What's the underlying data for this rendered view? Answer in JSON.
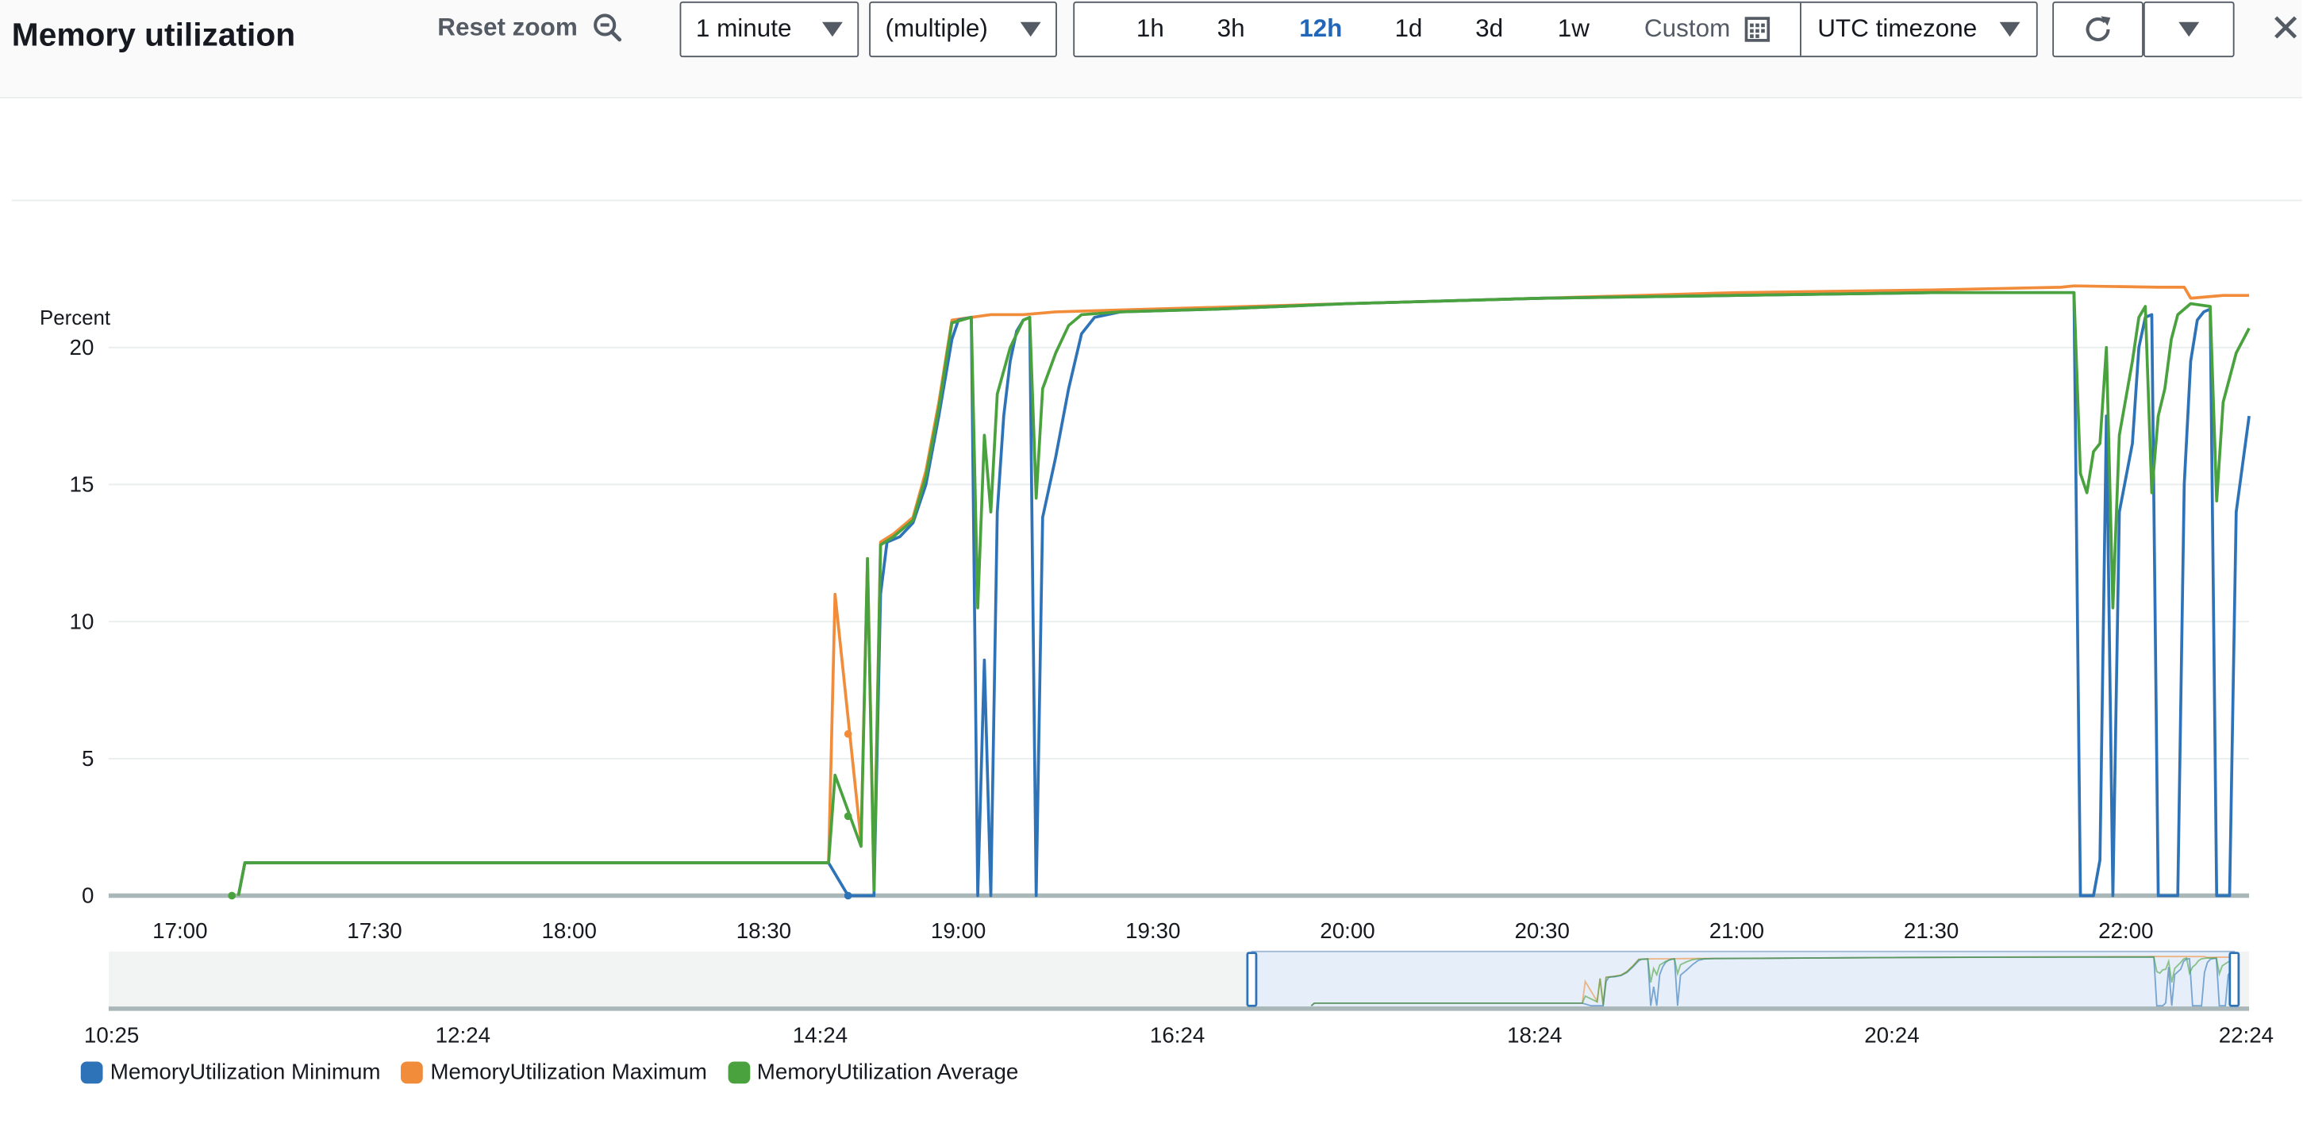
{
  "header": {
    "title": "Memory utilization",
    "reset_zoom": "Reset zoom",
    "period": "1 minute",
    "statistic": "(multiple)",
    "ranges": [
      "1h",
      "3h",
      "12h",
      "1d",
      "3d",
      "1w"
    ],
    "active_range": "12h",
    "custom": "Custom",
    "timezone": "UTC timezone"
  },
  "colors": {
    "minimum": "#2e73b8",
    "maximum": "#f08c3a",
    "average": "#4aa23e",
    "accent": "#2166b8"
  },
  "chart_data": {
    "type": "line",
    "ylabel": "Percent",
    "yticks": [
      0,
      5,
      10,
      15,
      20
    ],
    "ylim": [
      0,
      22.5
    ],
    "xlim": [
      "16:49",
      "22:19"
    ],
    "xticks": [
      "17:00",
      "17:30",
      "18:00",
      "18:30",
      "19:00",
      "19:30",
      "20:00",
      "20:30",
      "21:00",
      "21:30",
      "22:00"
    ],
    "grid": true,
    "legend_position": "bottom",
    "overview": {
      "ticks": [
        "10:25",
        "12:24",
        "14:24",
        "16:24",
        "18:24",
        "20:24",
        "22:24"
      ]
    },
    "series": [
      {
        "name": "MemoryUtilization Minimum",
        "key": "min",
        "points": [
          [
            "17:09",
            0
          ],
          [
            "17:10",
            1.2
          ],
          [
            "18:40",
            1.2
          ],
          [
            "18:43",
            0
          ],
          [
            "18:45",
            0
          ],
          [
            "18:47",
            0
          ],
          [
            "18:48",
            11
          ],
          [
            "18:49",
            12.9
          ],
          [
            "18:51",
            13.1
          ],
          [
            "18:53",
            13.6
          ],
          [
            "18:55",
            15
          ],
          [
            "18:57",
            17.5
          ],
          [
            "18:59",
            20.3
          ],
          [
            "19:00",
            21
          ],
          [
            "19:02",
            21.1
          ],
          [
            "19:03",
            0
          ],
          [
            "19:04",
            8.6
          ],
          [
            "19:05",
            0
          ],
          [
            "19:06",
            14
          ],
          [
            "19:07",
            17.5
          ],
          [
            "19:08",
            19.5
          ],
          [
            "19:09",
            20.6
          ],
          [
            "19:10",
            21
          ],
          [
            "19:11",
            21.1
          ],
          [
            "19:12",
            0
          ],
          [
            "19:13",
            13.8
          ],
          [
            "19:15",
            16
          ],
          [
            "19:17",
            18.5
          ],
          [
            "19:19",
            20.5
          ],
          [
            "19:21",
            21.1
          ],
          [
            "19:25",
            21.3
          ],
          [
            "19:40",
            21.4
          ],
          [
            "20:00",
            21.6
          ],
          [
            "20:30",
            21.8
          ],
          [
            "21:00",
            21.9
          ],
          [
            "21:30",
            22.0
          ],
          [
            "21:52",
            22.0
          ],
          [
            "21:53",
            0
          ],
          [
            "21:55",
            0
          ],
          [
            "21:56",
            1.3
          ],
          [
            "21:57",
            17.5
          ],
          [
            "21:58",
            0
          ],
          [
            "21:59",
            14
          ],
          [
            "22:01",
            16.5
          ],
          [
            "22:02",
            20
          ],
          [
            "22:03",
            21.1
          ],
          [
            "22:04",
            21.2
          ],
          [
            "22:05",
            0
          ],
          [
            "22:08",
            0
          ],
          [
            "22:09",
            15
          ],
          [
            "22:10",
            19.5
          ],
          [
            "22:11",
            21.0
          ],
          [
            "22:12",
            21.3
          ],
          [
            "22:13",
            21.4
          ],
          [
            "22:14",
            0
          ],
          [
            "22:16",
            0
          ],
          [
            "22:17",
            14
          ],
          [
            "22:19",
            17.5
          ]
        ],
        "dots": [
          [
            "18:43",
            0
          ]
        ]
      },
      {
        "name": "MemoryUtilization Maximum",
        "key": "max",
        "points": [
          [
            "17:09",
            0
          ],
          [
            "17:10",
            1.2
          ],
          [
            "18:40",
            1.2
          ],
          [
            "18:41",
            11.0
          ],
          [
            "18:45",
            2
          ],
          [
            "18:46",
            12.3
          ],
          [
            "18:47",
            0.5
          ],
          [
            "18:48",
            12.9
          ],
          [
            "18:50",
            13.2
          ],
          [
            "18:53",
            13.8
          ],
          [
            "18:55",
            15.5
          ],
          [
            "18:57",
            18
          ],
          [
            "18:59",
            21
          ],
          [
            "19:02",
            21.1
          ],
          [
            "19:05",
            21.2
          ],
          [
            "19:10",
            21.2
          ],
          [
            "19:15",
            21.3
          ],
          [
            "19:30",
            21.4
          ],
          [
            "20:00",
            21.6
          ],
          [
            "20:30",
            21.8
          ],
          [
            "21:00",
            22.0
          ],
          [
            "21:30",
            22.1
          ],
          [
            "21:50",
            22.2
          ],
          [
            "21:52",
            22.25
          ],
          [
            "22:05",
            22.2
          ],
          [
            "22:09",
            22.2
          ],
          [
            "22:10",
            21.8
          ],
          [
            "22:15",
            21.9
          ],
          [
            "22:19",
            21.9
          ]
        ],
        "dots": [
          [
            "18:43",
            5.9
          ]
        ]
      },
      {
        "name": "MemoryUtilization Average",
        "key": "avg",
        "points": [
          [
            "17:09",
            0
          ],
          [
            "17:10",
            1.2
          ],
          [
            "18:40",
            1.2
          ],
          [
            "18:41",
            4.4
          ],
          [
            "18:45",
            1.8
          ],
          [
            "18:46",
            12.3
          ],
          [
            "18:47",
            0.2
          ],
          [
            "18:48",
            12.8
          ],
          [
            "18:50",
            13.1
          ],
          [
            "18:53",
            13.7
          ],
          [
            "18:55",
            15.3
          ],
          [
            "18:57",
            17.8
          ],
          [
            "18:59",
            20.9
          ],
          [
            "19:02",
            21.1
          ],
          [
            "19:03",
            10.5
          ],
          [
            "19:04",
            16.8
          ],
          [
            "19:05",
            14
          ],
          [
            "19:06",
            18.3
          ],
          [
            "19:08",
            20
          ],
          [
            "19:10",
            21.0
          ],
          [
            "19:11",
            21.1
          ],
          [
            "19:12",
            14.5
          ],
          [
            "19:13",
            18.5
          ],
          [
            "19:15",
            19.8
          ],
          [
            "19:17",
            20.8
          ],
          [
            "19:19",
            21.2
          ],
          [
            "19:25",
            21.3
          ],
          [
            "19:40",
            21.4
          ],
          [
            "20:00",
            21.6
          ],
          [
            "20:30",
            21.8
          ],
          [
            "21:00",
            21.9
          ],
          [
            "21:30",
            22.0
          ],
          [
            "21:52",
            22.0
          ],
          [
            "21:53",
            15.4
          ],
          [
            "21:54",
            14.7
          ],
          [
            "21:55",
            16.2
          ],
          [
            "21:56",
            16.5
          ],
          [
            "21:57",
            20
          ],
          [
            "21:58",
            10.5
          ],
          [
            "21:59",
            16.8
          ],
          [
            "22:01",
            19.5
          ],
          [
            "22:02",
            21.1
          ],
          [
            "22:03",
            21.5
          ],
          [
            "22:04",
            14.7
          ],
          [
            "22:05",
            17.5
          ],
          [
            "22:06",
            18.5
          ],
          [
            "22:07",
            20.3
          ],
          [
            "22:08",
            21.2
          ],
          [
            "22:10",
            21.6
          ],
          [
            "22:13",
            21.5
          ],
          [
            "22:14",
            14.4
          ],
          [
            "22:15",
            18
          ],
          [
            "22:17",
            19.8
          ],
          [
            "22:19",
            20.7
          ]
        ],
        "dots": [
          [
            "17:08",
            0
          ],
          [
            "18:43",
            2.9
          ]
        ]
      }
    ]
  }
}
